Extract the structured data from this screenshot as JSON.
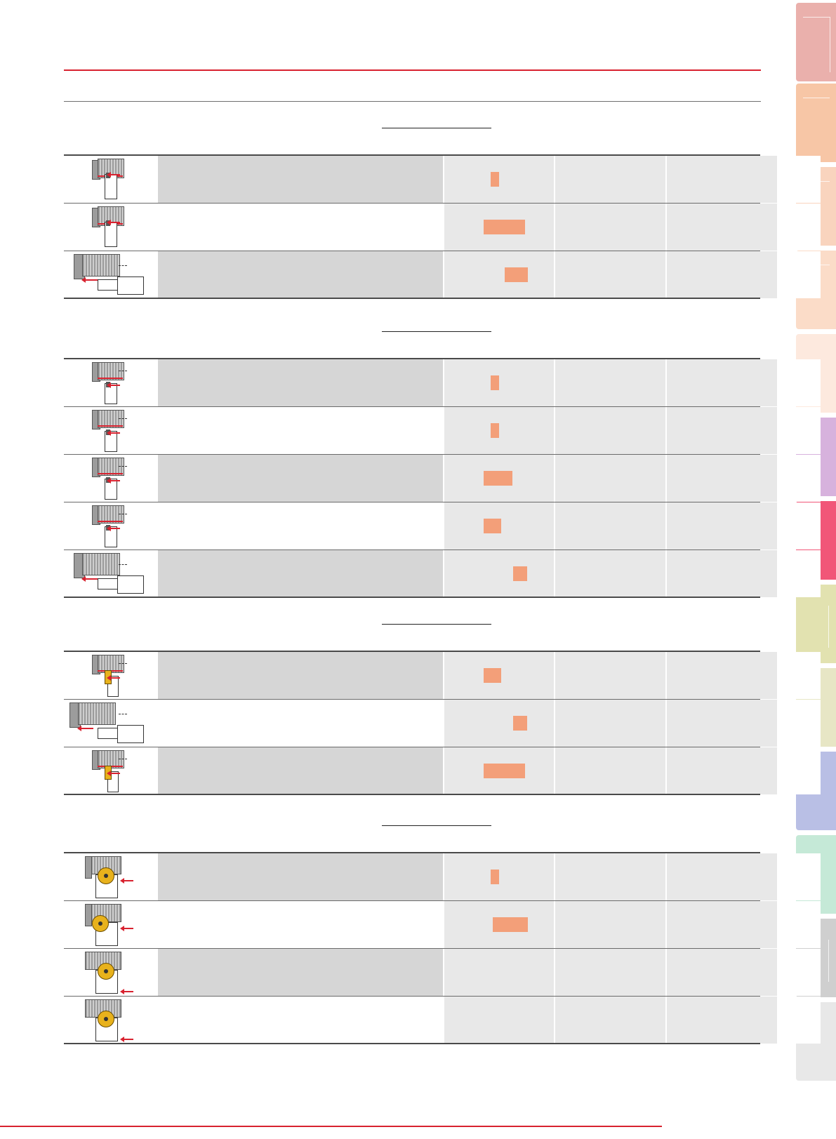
{
  "side_tabs": {
    "colors": [
      "#eab0ac",
      "#f7c6a6",
      "#f9d4be",
      "#fbdcc8",
      "#fde9de",
      "#d7b2dd",
      "#f15678",
      "#e2e2b0",
      "#e7e6c5",
      "#b9bfe5",
      "#c5e9d7",
      "#cfcfcf",
      "#e8e8e8"
    ]
  },
  "groups": [
    {
      "rows": [
        {
          "shade": true,
          "bar_color": "#f39f79",
          "bar_level": [
            0.42,
            0.5
          ]
        },
        {
          "shade": false,
          "bar_color": "#f39f79",
          "bar_level": [
            0.36,
            0.74
          ]
        },
        {
          "shade": true,
          "bar_color": "#f39f79",
          "bar_level": [
            0.55,
            0.76
          ]
        }
      ]
    },
    {
      "rows": [
        {
          "shade": true,
          "bar_color": "#f39f79",
          "bar_level": [
            0.42,
            0.5
          ]
        },
        {
          "shade": false,
          "bar_color": "#f39f79",
          "bar_level": [
            0.42,
            0.5
          ]
        },
        {
          "shade": true,
          "bar_color": "#f39f79",
          "bar_level": [
            0.36,
            0.62
          ]
        },
        {
          "shade": false,
          "bar_color": "#f39f79",
          "bar_level": [
            0.36,
            0.52
          ]
        },
        {
          "shade": true,
          "bar_color": "#f39f79",
          "bar_level": [
            0.63,
            0.76
          ]
        }
      ]
    },
    {
      "rows": [
        {
          "shade": true,
          "bar_color": "#f39f79",
          "bar_level": [
            0.36,
            0.52
          ]
        },
        {
          "shade": false,
          "bar_color": "#f39f79",
          "bar_level": [
            0.63,
            0.76
          ]
        },
        {
          "shade": true,
          "bar_color": "#f39f79",
          "bar_level": [
            0.36,
            0.74
          ]
        }
      ]
    },
    {
      "rows": [
        {
          "shade": true,
          "bar_color": "#f39f79",
          "bar_level": [
            0.42,
            0.5
          ]
        },
        {
          "shade": false,
          "bar_color": "#f39f79",
          "bar_level": [
            0.44,
            0.76
          ]
        },
        {
          "shade": true,
          "bar_color": null,
          "bar_level": null
        },
        {
          "shade": false,
          "bar_color": null,
          "bar_level": null
        }
      ]
    }
  ]
}
